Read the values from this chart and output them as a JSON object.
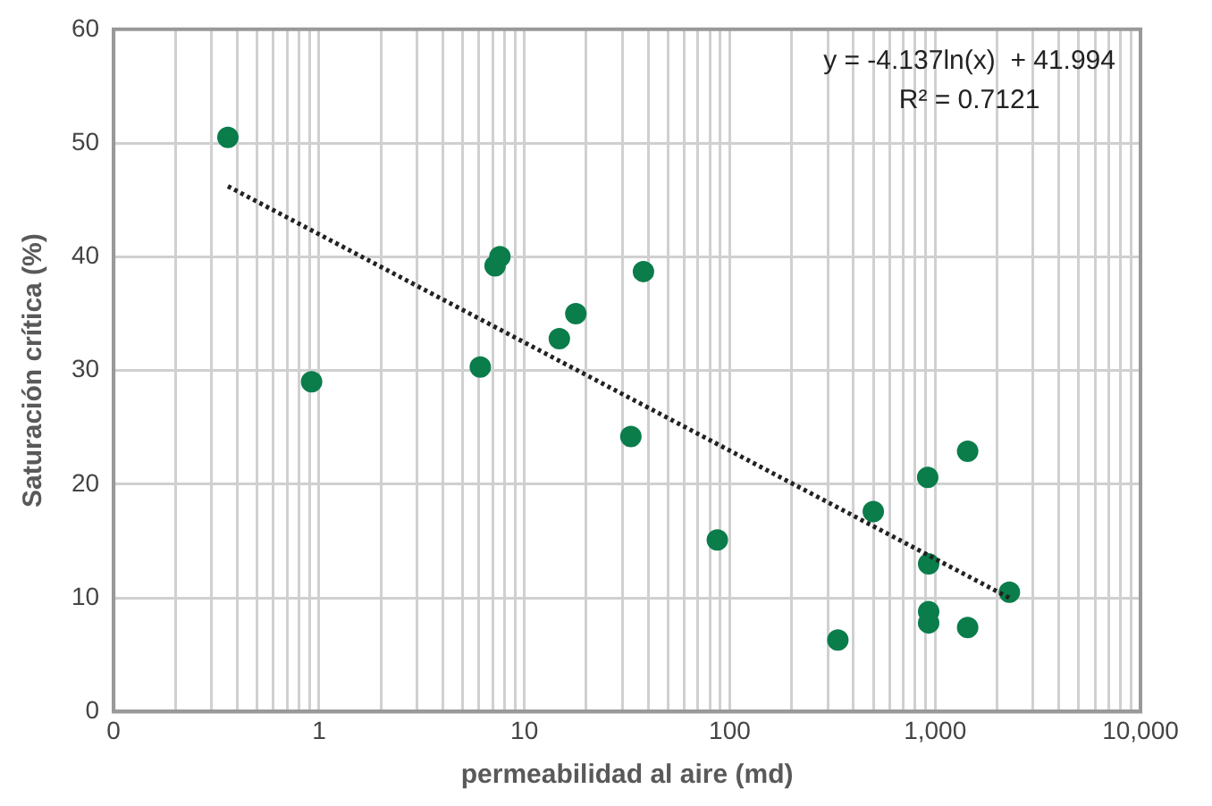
{
  "chart_data": {
    "type": "scatter",
    "xlabel": "permeabilidad al aire (md)",
    "ylabel": "Saturación crítica (%)",
    "log": "x",
    "grid": true,
    "legend": false,
    "marker": "circle",
    "xlim": [
      0.1,
      10000
    ],
    "ylim": [
      0,
      60
    ],
    "xticks": [
      {
        "value": 0.1,
        "label": "0"
      },
      {
        "value": 0.2,
        "label": null
      },
      {
        "value": 0.3,
        "label": null
      },
      {
        "value": 0.4,
        "label": null
      },
      {
        "value": 0.5,
        "label": null
      },
      {
        "value": 0.6,
        "label": null
      },
      {
        "value": 0.7,
        "label": null
      },
      {
        "value": 0.8,
        "label": null
      },
      {
        "value": 0.9,
        "label": null
      },
      {
        "value": 1,
        "label": "1"
      },
      {
        "value": 2,
        "label": null
      },
      {
        "value": 3,
        "label": null
      },
      {
        "value": 4,
        "label": null
      },
      {
        "value": 5,
        "label": null
      },
      {
        "value": 6,
        "label": null
      },
      {
        "value": 7,
        "label": null
      },
      {
        "value": 8,
        "label": null
      },
      {
        "value": 9,
        "label": null
      },
      {
        "value": 10,
        "label": "10"
      },
      {
        "value": 20,
        "label": null
      },
      {
        "value": 30,
        "label": null
      },
      {
        "value": 40,
        "label": null
      },
      {
        "value": 50,
        "label": null
      },
      {
        "value": 60,
        "label": null
      },
      {
        "value": 70,
        "label": null
      },
      {
        "value": 80,
        "label": null
      },
      {
        "value": 90,
        "label": null
      },
      {
        "value": 100,
        "label": "100"
      },
      {
        "value": 200,
        "label": null
      },
      {
        "value": 300,
        "label": null
      },
      {
        "value": 400,
        "label": null
      },
      {
        "value": 500,
        "label": null
      },
      {
        "value": 600,
        "label": null
      },
      {
        "value": 700,
        "label": null
      },
      {
        "value": 800,
        "label": null
      },
      {
        "value": 900,
        "label": null
      },
      {
        "value": 1000,
        "label": "1,000"
      },
      {
        "value": 2000,
        "label": null
      },
      {
        "value": 3000,
        "label": null
      },
      {
        "value": 4000,
        "label": null
      },
      {
        "value": 5000,
        "label": null
      },
      {
        "value": 6000,
        "label": null
      },
      {
        "value": 7000,
        "label": null
      },
      {
        "value": 8000,
        "label": null
      },
      {
        "value": 9000,
        "label": null
      },
      {
        "value": 10000,
        "label": "10,000"
      }
    ],
    "yticks": [
      0,
      10,
      20,
      30,
      40,
      50,
      60
    ],
    "annotations": [
      "y = -4.137ln(x)  + 41.994",
      "R² = 0.7121"
    ],
    "series": [
      {
        "type": "scatter",
        "color": "#0a7d4b",
        "x": [
          0.36,
          0.92,
          6.1,
          7.6,
          7.2,
          38,
          17.8,
          14.8,
          33,
          87,
          336,
          500,
          920,
          930,
          930,
          930,
          1440,
          1440,
          2300
        ],
        "values": [
          50.5,
          29,
          30.3,
          40,
          39.2,
          38.7,
          35,
          32.8,
          24.2,
          15.1,
          6.3,
          17.6,
          20.6,
          13,
          8.8,
          7.8,
          22.9,
          7.4,
          10.5
        ]
      },
      {
        "type": "line",
        "color": "#222222",
        "line_style": "dotted",
        "marker": "none",
        "x": [
          0.36,
          2300
        ],
        "values": [
          46.2,
          10
        ]
      }
    ]
  }
}
